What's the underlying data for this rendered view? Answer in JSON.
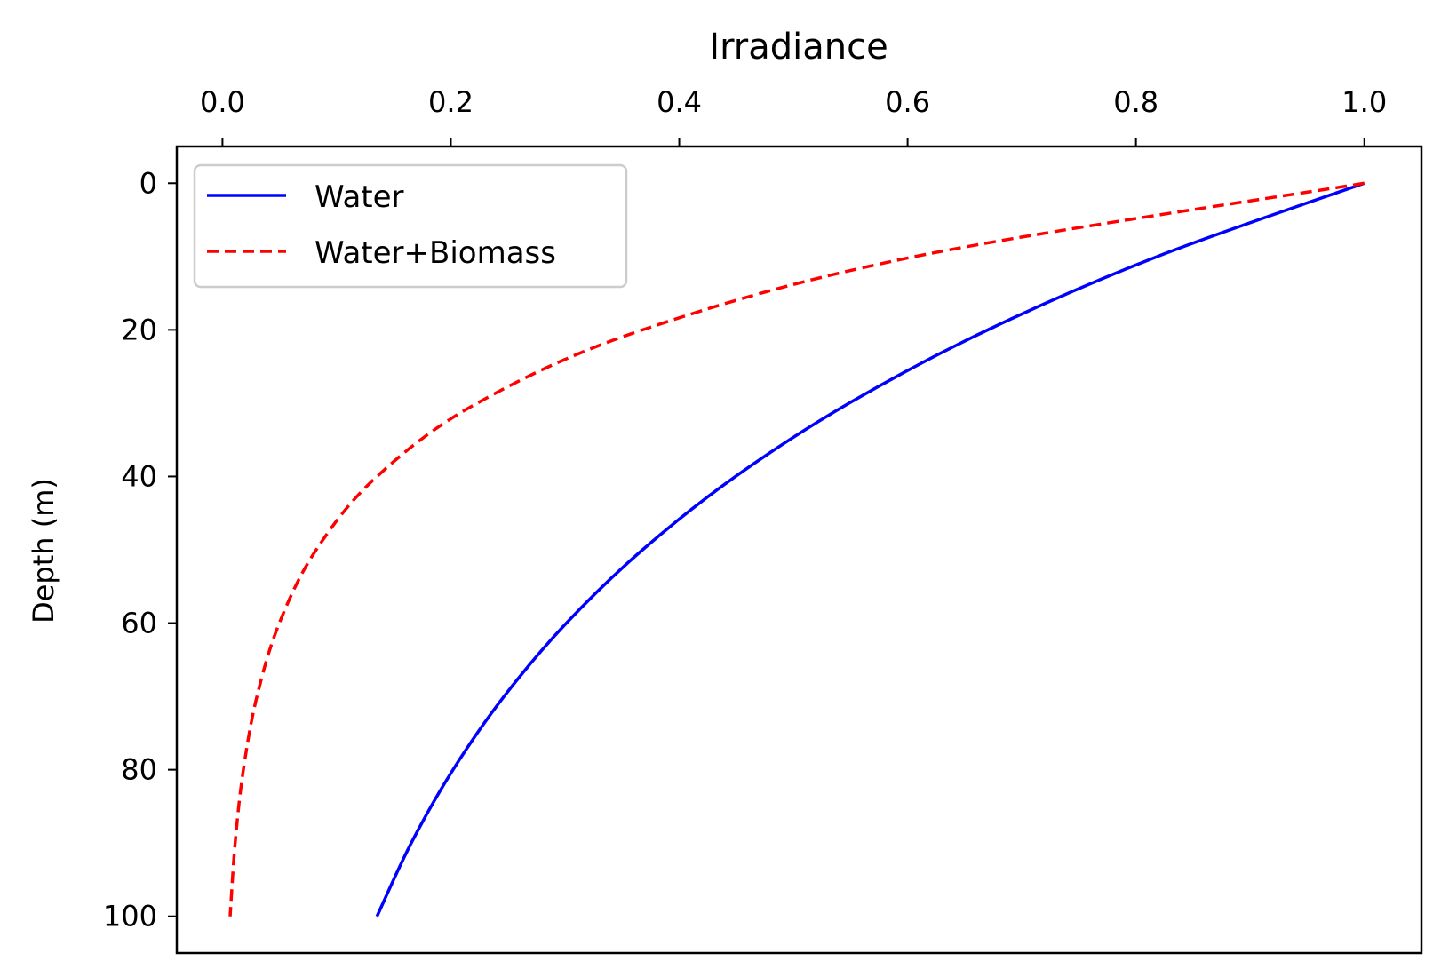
{
  "chart_data": {
    "type": "line",
    "title": "",
    "xlabel": "Irradiance",
    "xlabel_position": "top",
    "ylabel": "Depth (m)",
    "xlim": [
      -0.04,
      1.05
    ],
    "ylim": [
      105,
      -5
    ],
    "y_inverted": true,
    "x_ticks": [
      0.0,
      0.2,
      0.4,
      0.6,
      0.8,
      1.0
    ],
    "x_tick_labels": [
      "0.0",
      "0.2",
      "0.4",
      "0.6",
      "0.8",
      "1.0"
    ],
    "y_ticks": [
      0,
      20,
      40,
      60,
      80,
      100
    ],
    "y_tick_labels": [
      "0",
      "20",
      "40",
      "60",
      "80",
      "100"
    ],
    "grid": false,
    "legend_position": "top-left",
    "series": [
      {
        "name": "Water",
        "color": "#0000ff",
        "style": "solid",
        "x": [
          1.0,
          0.8187,
          0.6703,
          0.5488,
          0.4493,
          0.3679,
          0.3012,
          0.2466,
          0.2019,
          0.1653,
          0.1353
        ],
        "y": [
          0,
          10,
          20,
          30,
          40,
          50,
          60,
          70,
          80,
          90,
          100
        ]
      },
      {
        "name": "Water+Biomass",
        "color": "#ff0000",
        "style": "dashed",
        "x": [
          1.0,
          0.6065,
          0.3679,
          0.2231,
          0.1353,
          0.0821,
          0.0498,
          0.0302,
          0.0183,
          0.0111,
          0.0067
        ],
        "y": [
          0,
          10,
          20,
          30,
          40,
          50,
          60,
          70,
          80,
          90,
          100
        ]
      }
    ]
  }
}
